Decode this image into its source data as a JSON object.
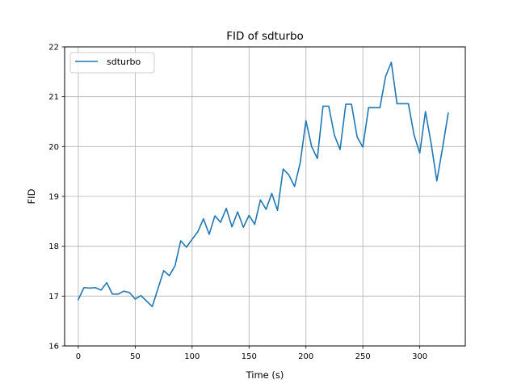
{
  "chart_data": {
    "type": "line",
    "title": "FID of sdturbo",
    "xlabel": "Time (s)",
    "ylabel": "FID",
    "xlim": [
      -12,
      340
    ],
    "ylim": [
      16,
      22
    ],
    "xticks": [
      0,
      50,
      100,
      150,
      200,
      250,
      300
    ],
    "yticks": [
      16,
      17,
      18,
      19,
      20,
      21,
      22
    ],
    "grid": true,
    "legend": "top-left",
    "series": [
      {
        "name": "sdturbo",
        "color": "#1f77b4",
        "x": [
          0,
          5,
          10,
          15,
          20,
          25,
          30,
          35,
          40,
          45,
          50,
          55,
          60,
          65,
          70,
          75,
          80,
          85,
          90,
          95,
          100,
          105,
          110,
          115,
          120,
          125,
          130,
          135,
          140,
          145,
          150,
          155,
          160,
          165,
          170,
          175,
          180,
          185,
          190,
          195,
          200,
          205,
          210,
          215,
          220,
          225,
          230,
          235,
          240,
          245,
          250,
          255,
          260,
          265,
          270,
          275,
          280,
          285,
          290,
          295,
          300,
          305,
          310,
          315,
          320,
          325
        ],
        "y": [
          16.93,
          17.17,
          17.16,
          17.17,
          17.12,
          17.27,
          17.04,
          17.04,
          17.1,
          17.07,
          16.94,
          17.01,
          16.9,
          16.79,
          17.15,
          17.51,
          17.41,
          17.61,
          18.11,
          17.98,
          18.14,
          18.29,
          18.55,
          18.24,
          18.61,
          18.48,
          18.76,
          18.39,
          18.69,
          18.38,
          18.62,
          18.44,
          18.93,
          18.74,
          19.06,
          18.72,
          19.55,
          19.43,
          19.2,
          19.68,
          20.52,
          20.0,
          19.76,
          20.81,
          20.81,
          20.23,
          19.94,
          20.85,
          20.85,
          20.19,
          19.99,
          20.78,
          20.78,
          20.78,
          21.41,
          21.69,
          20.86,
          20.86,
          20.86,
          20.23,
          19.87,
          20.7,
          20.06,
          19.31,
          19.97,
          20.67
        ]
      }
    ]
  }
}
